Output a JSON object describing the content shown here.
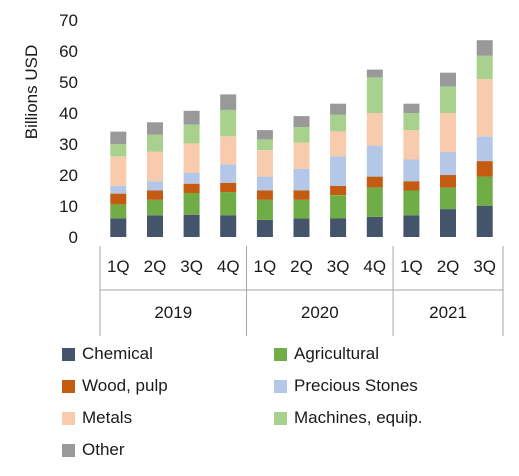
{
  "chart_data": {
    "type": "bar",
    "stacked": true,
    "ylabel": "Billions USD",
    "ylim": [
      0,
      70
    ],
    "yticks": [
      0,
      10,
      20,
      30,
      40,
      50,
      60,
      70
    ],
    "grid": false,
    "legend_position": "bottom",
    "categories": [
      "1Q",
      "2Q",
      "3Q",
      "4Q",
      "1Q",
      "2Q",
      "3Q",
      "4Q",
      "1Q",
      "2Q",
      "3Q"
    ],
    "groups": [
      {
        "label": "2019",
        "count": 4
      },
      {
        "label": "2020",
        "count": 4
      },
      {
        "label": "2021",
        "count": 3
      }
    ],
    "series": [
      {
        "name": "Chemical",
        "color": "#44546a",
        "values": [
          6,
          7,
          7.2,
          7,
          5.5,
          6,
          6,
          6.5,
          7,
          9,
          10
        ]
      },
      {
        "name": "Wood, pulp",
        "color": "#c55a11",
        "values": [
          3.5,
          3,
          3,
          3,
          3,
          3,
          3,
          3.5,
          3,
          4,
          5
        ]
      },
      {
        "name": "Metals",
        "color": "#f8cbad",
        "values": [
          9.5,
          9.5,
          9.5,
          9,
          8.5,
          8.5,
          8,
          10.5,
          9.5,
          12.5,
          18.5
        ]
      },
      {
        "name": "Other",
        "color": "#999999",
        "values": [
          4,
          4,
          4.5,
          5,
          3,
          3.5,
          3.5,
          2.5,
          3,
          4.5,
          5
        ]
      },
      {
        "name": "Agricultural",
        "color": "#70ad47",
        "values": [
          4.5,
          5,
          7,
          7.5,
          6.5,
          6,
          7.5,
          9.5,
          8,
          7,
          9.5
        ]
      },
      {
        "name": "Precious Stones",
        "color": "#b4c7e7",
        "values": [
          2.5,
          3,
          3.5,
          6,
          4.5,
          7,
          9.5,
          10,
          7,
          7.5,
          8
        ]
      },
      {
        "name": "Machines, equip.",
        "color": "#a9d18e",
        "values": [
          4,
          5.5,
          6,
          8.5,
          3.5,
          5,
          5.5,
          11.5,
          5.5,
          8.5,
          7.5
        ]
      }
    ],
    "stack_order": [
      "Chemical",
      "Agricultural",
      "Wood, pulp",
      "Precious Stones",
      "Metals",
      "Machines, equip.",
      "Other"
    ],
    "legend_order": [
      "Chemical",
      "Agricultural",
      "Wood, pulp",
      "Precious Stones",
      "Metals",
      "Machines, equip.",
      "Other"
    ]
  }
}
